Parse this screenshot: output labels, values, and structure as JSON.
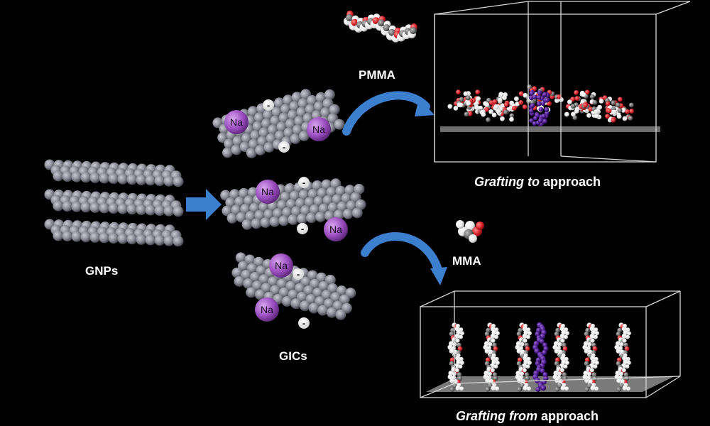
{
  "labels": {
    "gnps": "GNPs",
    "gics": "GICs",
    "pmma": "PMMA",
    "mma": "MMA",
    "sodium": "Na",
    "charge": "-"
  },
  "captions": {
    "grafting_to": {
      "italic": "Grafting",
      "mid": " to",
      "rest": " approach"
    },
    "grafting_from": {
      "italic": "Grafting from",
      "rest": " approach"
    }
  },
  "colors": {
    "background": "#000000",
    "graphene_atom": "#8a8a96",
    "sodium_ion": "#9b4fc0",
    "arrow": "#3d7fcf",
    "box_edge": "#d8d8d8",
    "oxygen": "#d8222a",
    "hydrogen": "#f2f2f2",
    "carbon": "#6e6e6e",
    "grafted_chain": "#4a1a8a"
  }
}
